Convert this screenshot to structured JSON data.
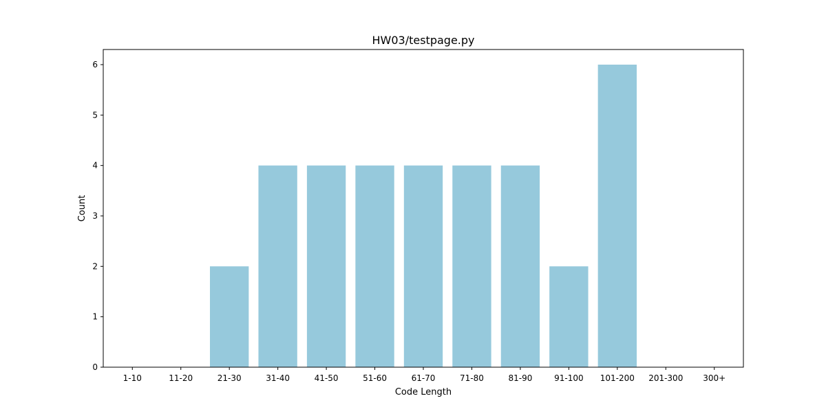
{
  "chart_data": {
    "type": "bar",
    "title": "HW03/testpage.py",
    "xlabel": "Code Length",
    "ylabel": "Count",
    "categories": [
      "1-10",
      "11-20",
      "21-30",
      "31-40",
      "41-50",
      "51-60",
      "61-70",
      "71-80",
      "81-90",
      "91-100",
      "101-200",
      "201-300",
      "300+"
    ],
    "values": [
      0,
      0,
      2,
      4,
      4,
      4,
      4,
      4,
      4,
      2,
      6,
      0,
      0
    ],
    "ylim": [
      0,
      6.3
    ],
    "yticks": [
      0,
      1,
      2,
      3,
      4,
      5,
      6
    ],
    "bar_color": "#96c9dc",
    "grid": false,
    "legend": "none"
  }
}
